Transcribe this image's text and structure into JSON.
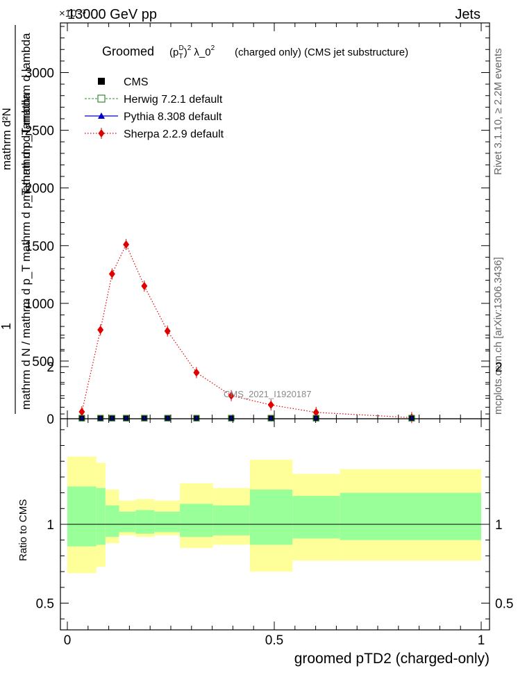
{
  "header": {
    "energy_label": "13000 GeV pp",
    "process_label": "Jets",
    "exponent_label": "×10⁻³"
  },
  "side_text": {
    "rivet": "Rivet 3.1.10, ≥ 2.2M events",
    "mcplots": "mcplots.cern.ch [arXiv:1306.3436]"
  },
  "watermark": "CMS_2021_I1920187",
  "title": {
    "prefix": "Groomed",
    "formula": "(p_T^D)^2 λ_0^2",
    "suffix": "(charged only) (CMS jet substructure)"
  },
  "ylabel_main": {
    "numerator": "1",
    "denominator": "mathrm d N / mathrm d p_T mathrm d p_T mathrm d lambda",
    "top_num": "mathrm d²N",
    "top_den": "mathrm d p_T mathrm d lambda"
  },
  "ylabel_ratio": "Ratio to CMS",
  "xlabel": "groomed pTD2 (charged-only)",
  "colors": {
    "cms": "#000000",
    "herwig": "#2e8b2e",
    "pythia": "#0000cc",
    "sherpa": "#e00000",
    "band_inner": "#99ff99",
    "band_outer": "#ffff99"
  },
  "chart_data": [
    {
      "type": "line",
      "panel": "main",
      "xlim": [
        0,
        1
      ],
      "ylim": [
        0,
        3450
      ],
      "yticks": [
        0,
        500,
        1000,
        1500,
        2000,
        2500,
        3000
      ],
      "ytick_labels": [
        "0",
        "500",
        "1000",
        "1500",
        "2000",
        "2500",
        "3000"
      ],
      "legend_position": "top-left",
      "series": [
        {
          "name": "CMS",
          "marker": "square",
          "x": [
            0.035,
            0.08,
            0.108,
            0.142,
            0.186,
            0.242,
            0.312,
            0.396,
            0.492,
            0.601,
            0.832
          ],
          "y": [
            5,
            5,
            5,
            5,
            5,
            5,
            5,
            5,
            5,
            5,
            5
          ]
        },
        {
          "name": "Herwig 7.2.1 default",
          "marker": "open-square",
          "x": [
            0.035,
            0.08,
            0.108,
            0.142,
            0.186,
            0.242,
            0.312,
            0.396,
            0.492,
            0.601,
            0.832
          ],
          "y": [
            5,
            5,
            5,
            5,
            5,
            5,
            5,
            5,
            5,
            5,
            5
          ]
        },
        {
          "name": "Pythia 8.308 default",
          "marker": "triangle",
          "x": [
            0.035,
            0.08,
            0.108,
            0.142,
            0.186,
            0.242,
            0.312,
            0.396,
            0.492,
            0.601,
            0.832
          ],
          "y": [
            5,
            5,
            5,
            5,
            5,
            5,
            5,
            5,
            5,
            5,
            5
          ]
        },
        {
          "name": "Sherpa 2.2.9 default",
          "marker": "diamond",
          "x": [
            0.035,
            0.08,
            0.108,
            0.142,
            0.186,
            0.242,
            0.312,
            0.396,
            0.492,
            0.601,
            0.832
          ],
          "y": [
            60,
            770,
            1255,
            1510,
            1150,
            760,
            400,
            200,
            120,
            55,
            10
          ]
        }
      ]
    },
    {
      "type": "area",
      "panel": "ratio",
      "xlim": [
        0,
        1
      ],
      "ylim": [
        0.34,
        2.26
      ],
      "yticks": [
        0.5,
        1,
        2
      ],
      "ytick_labels": [
        "0.5",
        "1",
        "2"
      ],
      "xticks": [
        0,
        0.5,
        1
      ],
      "xtick_labels": [
        "0",
        "0.5",
        "1"
      ],
      "bins": [
        0.0,
        0.07,
        0.092,
        0.125,
        0.165,
        0.21,
        0.272,
        0.352,
        0.441,
        0.544,
        0.659,
        1.0
      ],
      "inner_band": {
        "lo": [
          0.86,
          0.87,
          0.92,
          0.95,
          0.94,
          0.95,
          0.92,
          0.93,
          0.87,
          0.91,
          0.9
        ],
        "hi": [
          1.24,
          1.23,
          1.12,
          1.08,
          1.09,
          1.08,
          1.13,
          1.12,
          1.22,
          1.18,
          1.2
        ]
      },
      "outer_band": {
        "lo": [
          0.69,
          0.73,
          0.88,
          0.93,
          0.92,
          0.93,
          0.85,
          0.87,
          0.7,
          0.77,
          0.77
        ],
        "hi": [
          1.43,
          1.39,
          1.22,
          1.15,
          1.16,
          1.15,
          1.26,
          1.23,
          1.41,
          1.32,
          1.35
        ]
      },
      "reference_line": 1
    }
  ]
}
